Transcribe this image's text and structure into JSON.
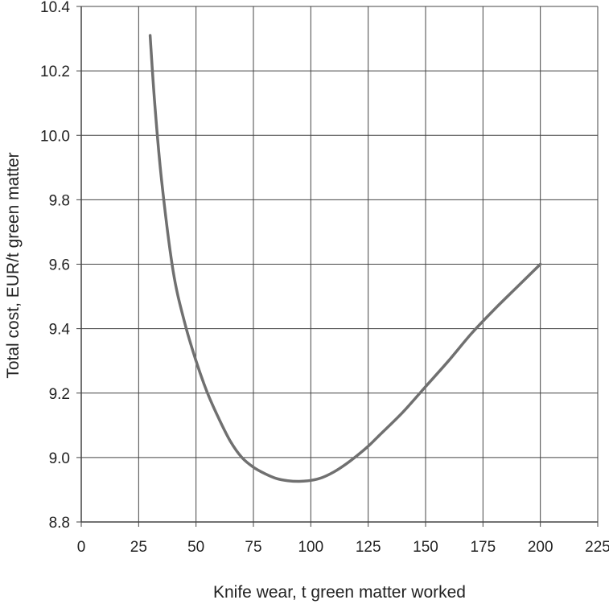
{
  "chart_data": {
    "type": "line",
    "title": "",
    "xlabel": "Knife wear, t green matter worked",
    "ylabel": "Total cost, EUR/t green matter",
    "xlim": [
      0,
      225
    ],
    "ylim": [
      8.8,
      10.4
    ],
    "x_ticks": [
      0,
      25,
      50,
      75,
      100,
      125,
      150,
      175,
      200,
      225
    ],
    "x_tick_labels": [
      "0",
      "25",
      "50",
      "75",
      "100",
      "125",
      "150",
      "175",
      "200",
      "225"
    ],
    "y_ticks": [
      8.8,
      9.0,
      9.2,
      9.4,
      9.6,
      9.8,
      10.0,
      10.2,
      10.4
    ],
    "y_tick_labels": [
      "8.8",
      "9.0",
      "9.2",
      "9.4",
      "9.6",
      "9.8",
      "10.0",
      "10.2",
      "10.4"
    ],
    "grid": true,
    "legend": "none",
    "series": [
      {
        "color": "#707070",
        "x": [
          30,
          32,
          35,
          40,
          45,
          50,
          55,
          60,
          65,
          70,
          75,
          80,
          85,
          90,
          95,
          100,
          105,
          110,
          115,
          120,
          125,
          130,
          140,
          150,
          160,
          170,
          180,
          190,
          200
        ],
        "y": [
          10.31,
          10.1,
          9.86,
          9.58,
          9.42,
          9.3,
          9.2,
          9.12,
          9.05,
          9.0,
          8.97,
          8.95,
          8.935,
          8.928,
          8.926,
          8.929,
          8.938,
          8.955,
          8.978,
          9.005,
          9.035,
          9.07,
          9.14,
          9.22,
          9.3,
          9.385,
          9.46,
          9.53,
          9.6
        ]
      }
    ]
  },
  "colors": {
    "grid": "#444444",
    "axis": "#444444",
    "line": "#707070",
    "background": "#ffffff"
  }
}
